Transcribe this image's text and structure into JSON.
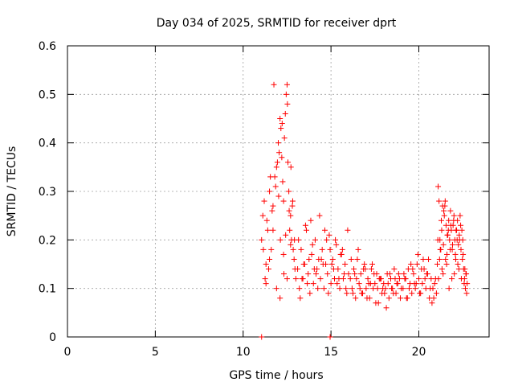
{
  "chart_data": {
    "type": "scatter",
    "title": "Day 034 of 2025, SRMTID for receiver dprt",
    "xlabel": "GPS time / hours",
    "ylabel": "SRMTID / TECUs",
    "xlim": [
      0,
      24
    ],
    "ylim": [
      0,
      0.6
    ],
    "x_ticks": [
      0,
      5,
      10,
      15,
      20
    ],
    "y_ticks": [
      0,
      0.1,
      0.2,
      0.3,
      0.4,
      0.5,
      0.6
    ],
    "x_tick_labels": [
      "0",
      "5",
      "10",
      "15",
      "20"
    ],
    "y_tick_labels": [
      "0",
      "0.1",
      "0.2",
      "0.3",
      "0.4",
      "0.5",
      "0.6"
    ],
    "grid": true,
    "marker": "+",
    "series": [
      {
        "name": "SRMTID",
        "color": "#ff0000",
        "x": [
          11.05,
          11.12,
          11.2,
          11.3,
          11.4,
          11.5,
          11.6,
          11.7,
          11.8,
          11.9,
          12.0,
          12.05,
          12.1,
          12.15,
          12.2,
          12.25,
          12.3,
          12.35,
          12.4,
          12.45,
          12.5,
          12.55,
          12.6,
          12.65,
          12.7,
          12.75,
          12.8,
          12.85,
          12.9,
          12.95,
          13.0,
          11.15,
          11.25,
          11.35,
          11.45,
          11.55,
          11.65,
          11.75,
          11.85,
          11.95,
          12.02,
          12.12,
          12.22,
          12.32,
          12.42,
          12.52,
          12.62,
          12.72,
          12.82,
          12.92,
          11.3,
          11.5,
          11.7,
          11.9,
          12.1,
          12.3,
          12.5,
          12.7,
          13.1,
          13.2,
          13.3,
          13.4,
          13.5,
          13.6,
          13.7,
          13.8,
          13.9,
          14.0,
          14.1,
          14.2,
          14.3,
          14.4,
          14.5,
          14.6,
          14.7,
          14.8,
          14.9,
          15.0,
          15.1,
          15.2,
          15.3,
          15.4,
          15.5,
          15.6,
          15.7,
          15.8,
          15.9,
          16.0,
          13.15,
          13.35,
          13.55,
          13.75,
          13.95,
          14.15,
          14.35,
          14.55,
          14.75,
          14.95,
          15.15,
          15.35,
          15.55,
          15.75,
          15.95,
          13.25,
          13.45,
          13.65,
          13.85,
          14.05,
          14.25,
          14.45,
          14.65,
          14.85,
          15.05,
          15.25,
          15.45,
          15.65,
          15.85,
          16.1,
          16.2,
          16.3,
          16.4,
          16.5,
          16.6,
          16.7,
          16.8,
          16.9,
          17.0,
          17.1,
          17.2,
          17.3,
          17.4,
          17.5,
          17.6,
          17.7,
          17.8,
          17.9,
          18.0,
          18.1,
          18.2,
          18.3,
          18.4,
          18.5,
          18.6,
          18.7,
          18.8,
          18.9,
          19.0,
          16.15,
          16.35,
          16.55,
          16.75,
          16.95,
          17.15,
          17.35,
          17.55,
          17.75,
          17.95,
          18.15,
          18.35,
          18.55,
          18.75,
          18.95,
          16.25,
          16.45,
          16.65,
          16.85,
          17.05,
          17.25,
          17.45,
          17.65,
          17.85,
          18.05,
          18.25,
          18.45,
          18.65,
          18.85,
          19.1,
          19.2,
          19.3,
          19.4,
          19.5,
          19.6,
          19.7,
          19.8,
          19.9,
          20.0,
          20.1,
          20.2,
          20.3,
          20.4,
          20.5,
          20.6,
          20.7,
          20.8,
          20.9,
          21.0,
          19.15,
          19.35,
          19.55,
          19.75,
          19.95,
          20.15,
          20.35,
          20.55,
          20.75,
          20.95,
          19.25,
          19.45,
          19.65,
          19.85,
          20.05,
          20.25,
          20.45,
          20.65,
          20.85,
          21.05,
          21.1,
          21.15,
          21.2,
          21.25,
          21.3,
          21.35,
          21.4,
          21.45,
          21.5,
          21.55,
          21.6,
          21.65,
          21.7,
          21.75,
          21.8,
          21.85,
          21.9,
          21.95,
          22.0,
          22.05,
          22.1,
          22.15,
          22.2,
          22.25,
          22.3,
          22.35,
          22.4,
          22.45,
          22.5,
          22.55,
          22.6,
          22.65,
          22.7,
          22.75,
          21.08,
          21.18,
          21.28,
          21.38,
          21.48,
          21.58,
          21.68,
          21.78,
          21.88,
          21.98,
          22.08,
          22.18,
          22.28,
          22.38,
          22.48,
          22.58,
          22.68,
          21.12,
          21.22,
          21.32,
          21.42,
          21.52,
          21.62,
          21.72,
          21.82,
          21.92,
          22.02,
          22.12,
          22.22,
          22.32,
          22.42,
          22.52,
          22.62,
          22.72,
          11.05,
          14.95
        ],
        "y": [
          0.2,
          0.25,
          0.28,
          0.15,
          0.22,
          0.3,
          0.18,
          0.27,
          0.33,
          0.35,
          0.4,
          0.38,
          0.45,
          0.43,
          0.37,
          0.32,
          0.28,
          0.41,
          0.46,
          0.5,
          0.52,
          0.36,
          0.3,
          0.22,
          0.25,
          0.2,
          0.27,
          0.18,
          0.16,
          0.14,
          0.12,
          0.18,
          0.12,
          0.24,
          0.14,
          0.33,
          0.26,
          0.52,
          0.31,
          0.36,
          0.29,
          0.2,
          0.44,
          0.13,
          0.21,
          0.48,
          0.26,
          0.35,
          0.28,
          0.2,
          0.11,
          0.16,
          0.22,
          0.1,
          0.08,
          0.17,
          0.12,
          0.19,
          0.14,
          0.1,
          0.18,
          0.12,
          0.15,
          0.22,
          0.13,
          0.09,
          0.17,
          0.11,
          0.2,
          0.14,
          0.16,
          0.12,
          0.18,
          0.1,
          0.15,
          0.13,
          0.21,
          0.11,
          0.16,
          0.12,
          0.19,
          0.14,
          0.1,
          0.17,
          0.12,
          0.15,
          0.09,
          0.13,
          0.2,
          0.12,
          0.23,
          0.16,
          0.19,
          0.13,
          0.25,
          0.15,
          0.2,
          0.18,
          0.14,
          0.11,
          0.17,
          0.13,
          0.22,
          0.08,
          0.15,
          0.11,
          0.24,
          0.14,
          0.1,
          0.16,
          0.22,
          0.09,
          0.15,
          0.2,
          0.12,
          0.18,
          0.1,
          0.12,
          0.1,
          0.14,
          0.08,
          0.16,
          0.11,
          0.13,
          0.09,
          0.15,
          0.1,
          0.12,
          0.08,
          0.14,
          0.1,
          0.11,
          0.13,
          0.07,
          0.12,
          0.09,
          0.11,
          0.1,
          0.13,
          0.08,
          0.12,
          0.1,
          0.14,
          0.09,
          0.11,
          0.12,
          0.1,
          0.16,
          0.13,
          0.18,
          0.09,
          0.14,
          0.11,
          0.15,
          0.07,
          0.12,
          0.1,
          0.06,
          0.13,
          0.09,
          0.11,
          0.08,
          0.09,
          0.12,
          0.1,
          0.14,
          0.08,
          0.11,
          0.13,
          0.1,
          0.12,
          0.09,
          0.11,
          0.1,
          0.12,
          0.13,
          0.1,
          0.12,
          0.08,
          0.14,
          0.11,
          0.09,
          0.13,
          0.1,
          0.15,
          0.12,
          0.09,
          0.11,
          0.14,
          0.1,
          0.13,
          0.08,
          0.12,
          0.1,
          0.11,
          0.09,
          0.13,
          0.08,
          0.15,
          0.11,
          0.17,
          0.14,
          0.12,
          0.16,
          0.07,
          0.12,
          0.12,
          0.1,
          0.14,
          0.11,
          0.09,
          0.16,
          0.13,
          0.1,
          0.08,
          0.15,
          0.31,
          0.28,
          0.2,
          0.18,
          0.22,
          0.27,
          0.19,
          0.25,
          0.28,
          0.23,
          0.17,
          0.21,
          0.24,
          0.2,
          0.26,
          0.22,
          0.18,
          0.23,
          0.25,
          0.2,
          0.16,
          0.22,
          0.24,
          0.19,
          0.21,
          0.25,
          0.18,
          0.22,
          0.2,
          0.14,
          0.12,
          0.1,
          0.13,
          0.11,
          0.2,
          0.16,
          0.24,
          0.13,
          0.27,
          0.15,
          0.22,
          0.18,
          0.12,
          0.24,
          0.17,
          0.2,
          0.14,
          0.23,
          0.16,
          0.11,
          0.13,
          0.12,
          0.18,
          0.14,
          0.26,
          0.16,
          0.21,
          0.1,
          0.23,
          0.19,
          0.13,
          0.22,
          0.15,
          0.2,
          0.12,
          0.17,
          0.14,
          0.09,
          0.0,
          0.0
        ]
      }
    ]
  }
}
